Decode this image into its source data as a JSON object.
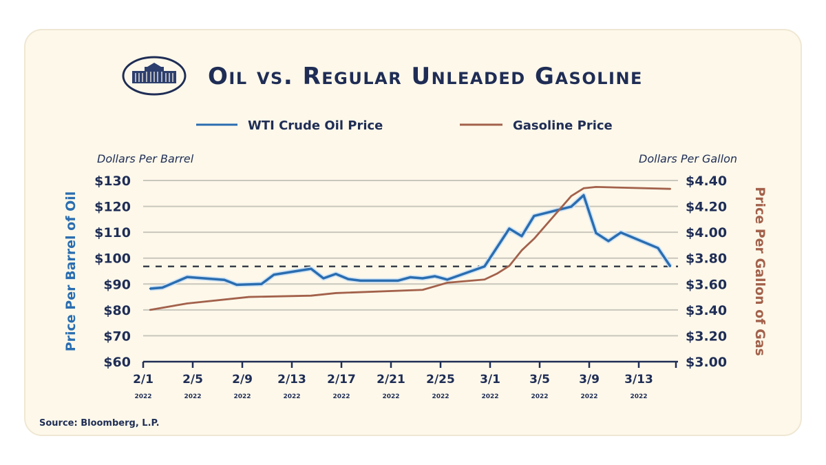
{
  "chart_data": {
    "type": "line",
    "title": "Oil vs. Regular Unleaded Gasoline",
    "legend": {
      "placement": "top-center",
      "entries": [
        "WTI Crude Oil Price",
        "Gasoline Price"
      ]
    },
    "left_axis": {
      "unit_label": "Dollars Per Barrel",
      "title": "Price Per Barrel of Oil",
      "range": [
        60,
        130
      ],
      "ticks": [
        "$60",
        "$70",
        "$80",
        "$90",
        "$100",
        "$110",
        "$120",
        "$130"
      ],
      "color": "#2a6db0"
    },
    "right_axis": {
      "unit_label": "Dollars Per Gallon",
      "title": "Price Per Gallon of Gas",
      "range": [
        3.0,
        4.4
      ],
      "ticks": [
        "$3.00",
        "$3.20",
        "$3.40",
        "$3.60",
        "$3.80",
        "$4.00",
        "$4.20",
        "$4.40"
      ],
      "color": "#a3614b"
    },
    "x_ticks": [
      {
        "label": "2/1",
        "year": "2022"
      },
      {
        "label": "2/5",
        "year": "2022"
      },
      {
        "label": "2/9",
        "year": "2022"
      },
      {
        "label": "2/13",
        "year": "2022"
      },
      {
        "label": "2/17",
        "year": "2022"
      },
      {
        "label": "2/21",
        "year": "2022"
      },
      {
        "label": "2/25",
        "year": "2022"
      },
      {
        "label": "3/1",
        "year": "2022"
      },
      {
        "label": "3/5",
        "year": "2022"
      },
      {
        "label": "3/9",
        "year": "2022"
      },
      {
        "label": "3/13",
        "year": "2022"
      }
    ],
    "grid": true,
    "reference_line": {
      "axis": "left",
      "value": 96.8,
      "style": "dashed"
    },
    "series": [
      {
        "name": "WTI Crude Oil Price",
        "axis": "left",
        "color": "#2a6db0",
        "x": [
          "2/1",
          "2/2",
          "2/4",
          "2/7",
          "2/8",
          "2/10",
          "2/11",
          "2/14",
          "2/15",
          "2/16",
          "2/17",
          "2/18",
          "2/21",
          "2/22",
          "2/23",
          "2/24",
          "2/25",
          "2/28",
          "3/2",
          "3/3",
          "3/4",
          "3/7",
          "3/8",
          "3/9",
          "3/10",
          "3/11",
          "3/14",
          "3/15"
        ],
        "values": [
          88.2,
          88.6,
          92.7,
          91.6,
          89.7,
          90.0,
          93.6,
          95.9,
          92.2,
          93.9,
          91.9,
          91.3,
          91.3,
          92.6,
          92.2,
          93.0,
          91.7,
          96.8,
          111.4,
          108.5,
          116.3,
          119.9,
          124.3,
          109.7,
          106.6,
          109.9,
          103.9,
          96.8
        ]
      },
      {
        "name": "Gasoline Price",
        "axis": "right",
        "color": "#a3614b",
        "x": [
          "2/1",
          "2/4",
          "2/9",
          "2/14",
          "2/16",
          "2/23",
          "2/25",
          "2/28",
          "3/1",
          "3/2",
          "3/3",
          "3/4",
          "3/7",
          "3/8",
          "3/9",
          "3/15"
        ],
        "values": [
          3.4,
          3.45,
          3.5,
          3.51,
          3.53,
          3.555,
          3.61,
          3.635,
          3.68,
          3.74,
          3.86,
          3.95,
          4.28,
          4.34,
          4.35,
          4.335
        ]
      }
    ],
    "source": "Source: Bloomberg, L.P."
  }
}
